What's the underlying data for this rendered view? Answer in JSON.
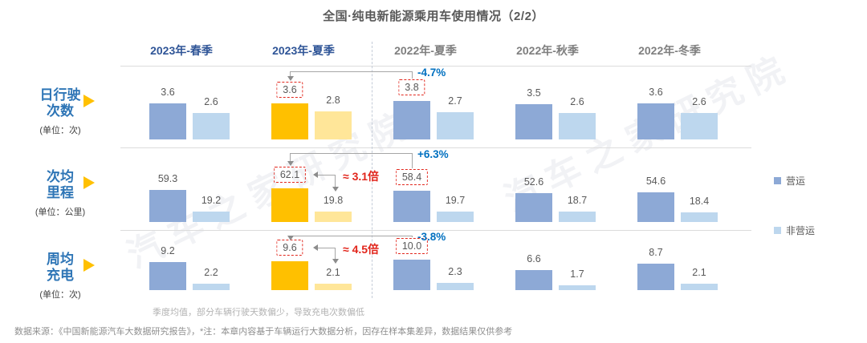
{
  "title": "全国·纯电新能源乘用车使用情况（2/2）",
  "watermark": "汽车之家研究院",
  "columns": [
    {
      "label": "2023年-春季",
      "emphasis": true
    },
    {
      "label": "2023年-夏季",
      "emphasis": true
    },
    {
      "label": "2022年-夏季",
      "emphasis": false
    },
    {
      "label": "2022年-秋季",
      "emphasis": false
    },
    {
      "label": "2022年-冬季",
      "emphasis": false
    }
  ],
  "legend": [
    {
      "label": "营运",
      "color": "#8da9d6"
    },
    {
      "label": "非营运",
      "color": "#bdd7ee"
    }
  ],
  "palette": {
    "operating": "#8da9d6",
    "non_operating": "#bdd7ee",
    "operating_highlight": "#ffc000",
    "non_operating_highlight": "#ffe699",
    "header_2023": "#2f5597",
    "header_2022": "#7f7f7f",
    "accent_blue": "#0070c0",
    "accent_red": "#e2261c",
    "row_label_blue": "#2e75b6",
    "indicator_yellow": "#ffc000"
  },
  "rows": [
    {
      "name": "日行驶次数",
      "name_lines": [
        "日行驶",
        "次数"
      ],
      "unit": "(单位：次)",
      "cells": [
        {
          "operating": "3.6",
          "non_operating": "2.6"
        },
        {
          "operating": "3.6",
          "non_operating": "2.8",
          "boxed": true,
          "highlight": true
        },
        {
          "operating": "3.8",
          "non_operating": "2.7",
          "boxed": true
        },
        {
          "operating": "3.5",
          "non_operating": "2.6"
        },
        {
          "operating": "3.6",
          "non_operating": "2.6"
        }
      ],
      "yoy_label": "-4.7%",
      "ratio_label": null
    },
    {
      "name": "次均里程",
      "name_lines": [
        "次均",
        "里程"
      ],
      "unit": "(单位：公里)",
      "cells": [
        {
          "operating": "59.3",
          "non_operating": "19.2"
        },
        {
          "operating": "62.1",
          "non_operating": "19.8",
          "boxed": true,
          "highlight": true
        },
        {
          "operating": "58.4",
          "non_operating": "19.7",
          "boxed": true
        },
        {
          "operating": "52.6",
          "non_operating": "18.7"
        },
        {
          "operating": "54.6",
          "non_operating": "18.4"
        }
      ],
      "yoy_label": "+6.3%",
      "ratio_label": "≈  3.1倍"
    },
    {
      "name": "周均充电",
      "name_lines": [
        "周均",
        "充电"
      ],
      "unit": "(单位：次)",
      "cells": [
        {
          "operating": "9.2",
          "non_operating": "2.2"
        },
        {
          "operating": "9.6",
          "non_operating": "2.1",
          "boxed": true,
          "highlight": true
        },
        {
          "operating": "10.0",
          "non_operating": "2.3",
          "boxed": true
        },
        {
          "operating": "6.6",
          "non_operating": "1.7"
        },
        {
          "operating": "8.7",
          "non_operating": "2.1"
        }
      ],
      "yoy_label": "-3.8%",
      "ratio_label": "≈  4.5倍"
    }
  ],
  "footnote": "季度均值，部分车辆行驶天数偏少，导致充电次数偏低",
  "source": "数据来源：《中国新能源汽车大数据研究报告》，*注：本章内容基于车辆运行大数据分析，因存在样本集差异，数据结果仅供参考",
  "chart_data": [
    {
      "type": "bar",
      "title": "日行驶次数",
      "ylabel": "次",
      "categories": [
        "2023年-春季",
        "2023年-夏季",
        "2022年-夏季",
        "2022年-秋季",
        "2022年-冬季"
      ],
      "series": [
        {
          "name": "营运",
          "values": [
            3.6,
            3.6,
            3.8,
            3.5,
            3.6
          ]
        },
        {
          "name": "非营运",
          "values": [
            2.6,
            2.8,
            2.7,
            2.6,
            2.6
          ]
        }
      ],
      "legend_position": "right",
      "grid": false,
      "annotations": [
        "2023年-夏季营运 vs 2022年-夏季营运: -4.7%"
      ]
    },
    {
      "type": "bar",
      "title": "次均里程",
      "ylabel": "公里",
      "categories": [
        "2023年-春季",
        "2023年-夏季",
        "2022年-夏季",
        "2022年-秋季",
        "2022年-冬季"
      ],
      "series": [
        {
          "name": "营运",
          "values": [
            59.3,
            62.1,
            58.4,
            52.6,
            54.6
          ]
        },
        {
          "name": "非营运",
          "values": [
            19.2,
            19.8,
            19.7,
            18.7,
            18.4
          ]
        }
      ],
      "legend_position": "right",
      "grid": false,
      "annotations": [
        "2023年-夏季营运 vs 2022年-夏季营运: +6.3%",
        "2023年-夏季 营运 vs 非营运: ≈ 3.1倍"
      ]
    },
    {
      "type": "bar",
      "title": "周均充电",
      "ylabel": "次",
      "categories": [
        "2023年-春季",
        "2023年-夏季",
        "2022年-夏季",
        "2022年-秋季",
        "2022年-冬季"
      ],
      "series": [
        {
          "name": "营运",
          "values": [
            9.2,
            9.6,
            10.0,
            6.6,
            8.7
          ]
        },
        {
          "name": "非营运",
          "values": [
            2.2,
            2.1,
            2.3,
            1.7,
            2.1
          ]
        }
      ],
      "legend_position": "right",
      "grid": false,
      "annotations": [
        "2023年-夏季营运 vs 2022年-夏季营运: -3.8%",
        "2023年-夏季 营运 vs 非营运: ≈ 4.5倍"
      ]
    }
  ]
}
